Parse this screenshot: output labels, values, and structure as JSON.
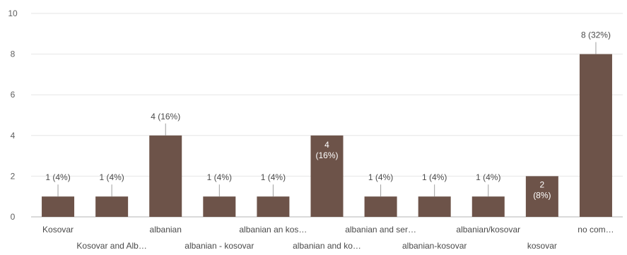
{
  "chart_data": {
    "type": "bar",
    "categories": [
      "Kosovar",
      "Kosovar and Alb…",
      "albanian",
      "albanian - kosovar",
      "albanian an kos…",
      "albanian and ko…",
      "albanian and ser…",
      "albanian-kosovar",
      "albanian/kosovar",
      "kosovar",
      "no com…"
    ],
    "values": [
      1,
      1,
      4,
      1,
      1,
      4,
      1,
      1,
      1,
      2,
      8
    ],
    "data_labels": [
      "1 (4%)",
      "1 (4%)",
      "4 (16%)",
      "1 (4%)",
      "1 (4%)",
      "4 (16%)",
      "1 (4%)",
      "1 (4%)",
      "1 (4%)",
      "2 (8%)",
      "8 (32%)"
    ],
    "ylim": [
      0,
      10
    ],
    "yticks": [
      0,
      2,
      4,
      6,
      8,
      10
    ],
    "grid": true,
    "bar_color": "#6d5349",
    "xlabel": "",
    "ylabel": "",
    "title": ""
  }
}
